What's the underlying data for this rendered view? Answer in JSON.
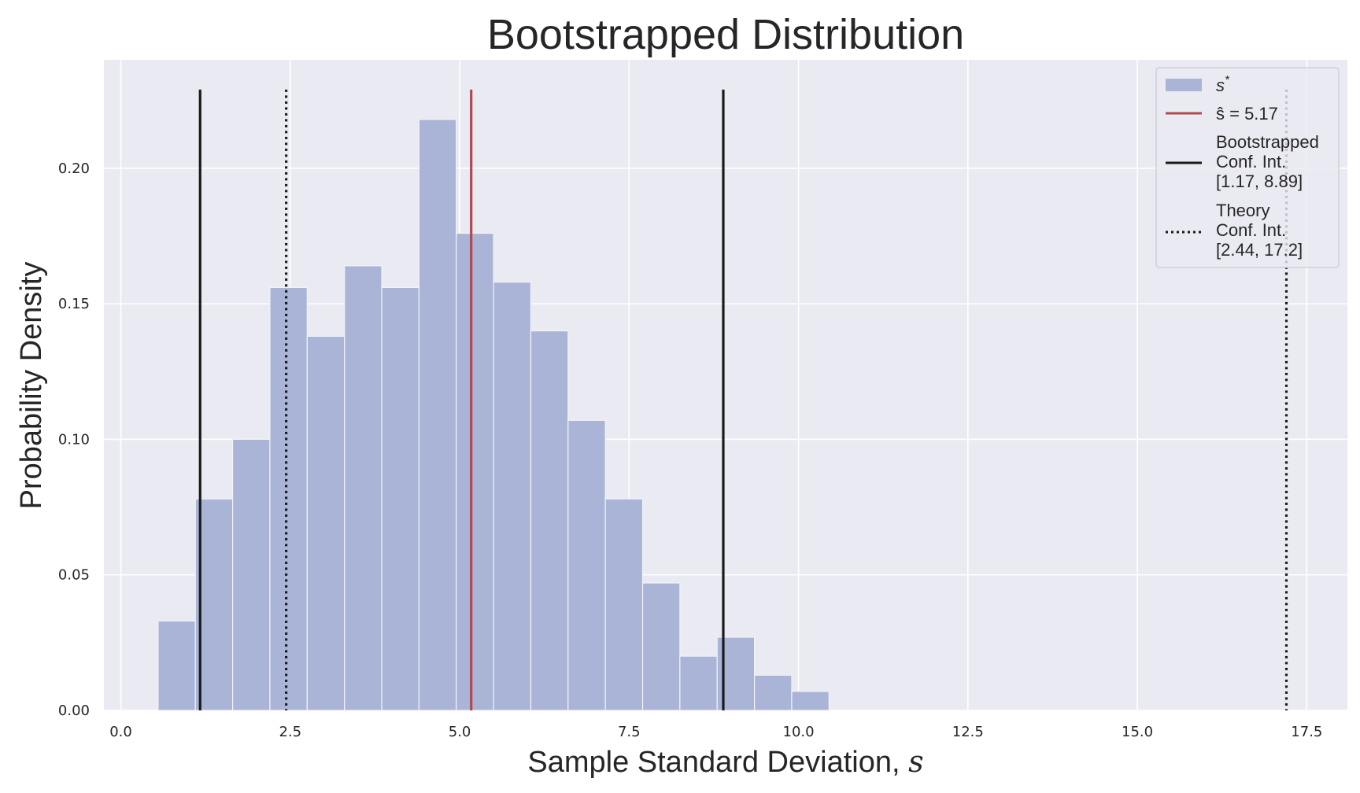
{
  "chart_data": {
    "type": "bar",
    "title": "Bootstrapped Distribution",
    "xlabel": "Sample Standard Deviation, ",
    "xlabel_var": "s",
    "ylabel": "Probability Density",
    "xlim": [
      -0.25,
      18.1
    ],
    "ylim": [
      0,
      0.24
    ],
    "xticks": [
      0.0,
      2.5,
      5.0,
      7.5,
      10.0,
      12.5,
      15.0,
      17.5
    ],
    "xtick_labels": [
      "0.0",
      "2.5",
      "5.0",
      "7.5",
      "10.0",
      "12.5",
      "15.0",
      "17.5"
    ],
    "yticks": [
      0.0,
      0.05,
      0.1,
      0.15,
      0.2
    ],
    "ytick_labels": [
      "0.00",
      "0.05",
      "0.10",
      "0.15",
      "0.20"
    ],
    "grid": true,
    "legend_position": "top-right",
    "bin_width": 0.55,
    "bins": [
      {
        "x0": 0.55,
        "value": 0.033
      },
      {
        "x0": 1.1,
        "value": 0.078
      },
      {
        "x0": 1.65,
        "value": 0.1
      },
      {
        "x0": 2.2,
        "value": 0.156
      },
      {
        "x0": 2.75,
        "value": 0.138
      },
      {
        "x0": 3.3,
        "value": 0.164
      },
      {
        "x0": 3.85,
        "value": 0.156
      },
      {
        "x0": 4.4,
        "value": 0.218
      },
      {
        "x0": 4.95,
        "value": 0.176
      },
      {
        "x0": 5.5,
        "value": 0.158
      },
      {
        "x0": 6.05,
        "value": 0.14
      },
      {
        "x0": 6.6,
        "value": 0.107
      },
      {
        "x0": 7.15,
        "value": 0.078
      },
      {
        "x0": 7.7,
        "value": 0.047
      },
      {
        "x0": 8.25,
        "value": 0.02
      },
      {
        "x0": 8.8,
        "value": 0.027
      },
      {
        "x0": 9.35,
        "value": 0.013
      },
      {
        "x0": 9.9,
        "value": 0.007
      }
    ],
    "vlines": [
      {
        "name": "s-hat",
        "x": 5.17,
        "style": "solid",
        "color": "#b5474f"
      },
      {
        "name": "boot-ci-lower",
        "x": 1.17,
        "style": "solid",
        "color": "#1a1a1a"
      },
      {
        "name": "boot-ci-upper",
        "x": 8.89,
        "style": "solid",
        "color": "#1a1a1a"
      },
      {
        "name": "theory-ci-lower",
        "x": 2.44,
        "style": "dotted",
        "color": "#1a1a1a"
      },
      {
        "name": "theory-ci-upper",
        "x": 17.2,
        "style": "dotted",
        "color": "#1a1a1a"
      }
    ],
    "vline_top": 0.229,
    "legend": {
      "entries": [
        {
          "kind": "patch",
          "label": "s*",
          "lines": [
            "s*"
          ]
        },
        {
          "kind": "line-solid-red",
          "label": "ŝ = 5.17",
          "lines": [
            "ŝ = 5.17"
          ]
        },
        {
          "kind": "line-solid-black",
          "label": "Bootstrapped Conf. Int. [1.17, 8.89]",
          "lines": [
            "Bootstrapped",
            "Conf. Int.",
            "[1.17, 8.89]"
          ]
        },
        {
          "kind": "line-dotted-black",
          "label": "Theory Conf. Int. [2.44, 17.2]",
          "lines": [
            "Theory",
            "Conf. Int.",
            "[2.44, 17.2]"
          ]
        }
      ]
    },
    "colors": {
      "background": "#eaeaf2",
      "grid": "#ffffff",
      "bar": "#aab4d6",
      "bar_edge": "#f2f3f8",
      "s_hat": "#b5474f",
      "ci": "#1a1a1a"
    }
  }
}
